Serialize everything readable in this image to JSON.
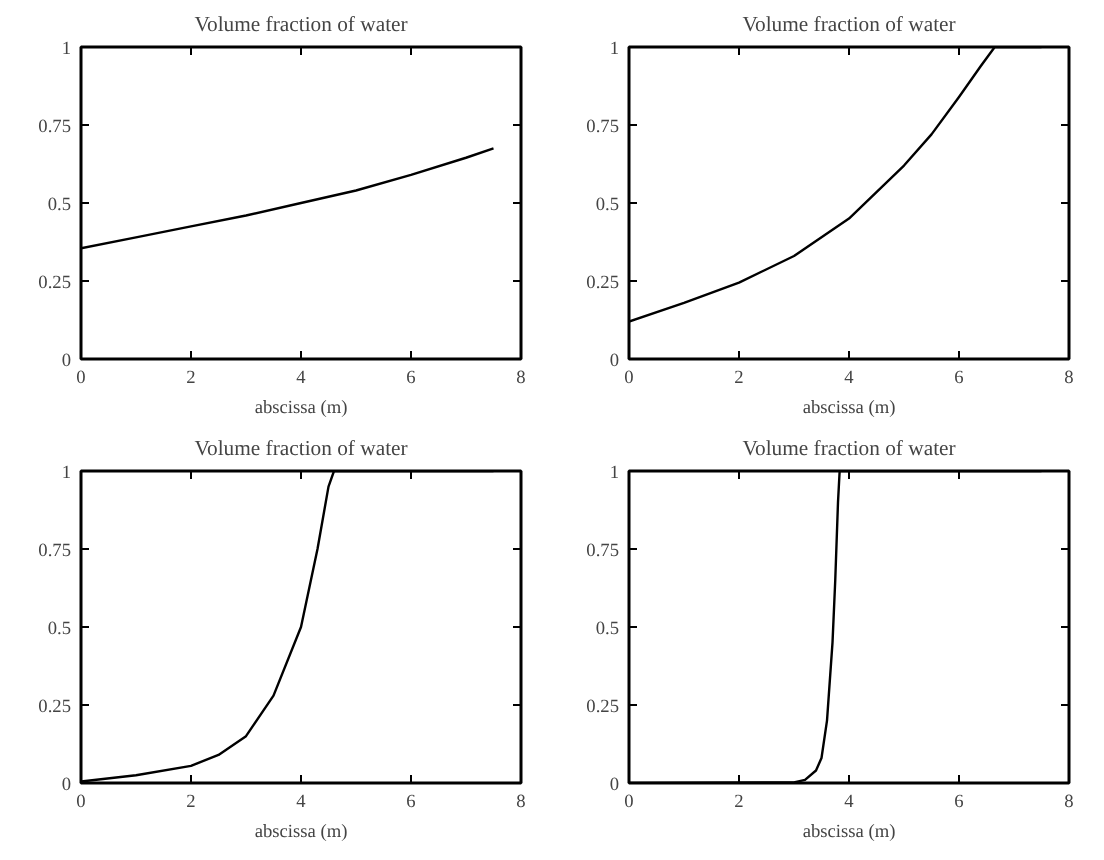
{
  "chart_data": [
    {
      "type": "line",
      "title": "Volume fraction of water",
      "xlabel": "abscissa (m)",
      "xlim": [
        0,
        8
      ],
      "ylim": [
        0,
        1
      ],
      "xticks": [
        0,
        2,
        4,
        6,
        8
      ],
      "yticks": [
        0,
        0.25,
        0.5,
        0.75,
        1
      ],
      "grid": false,
      "series": [
        {
          "color": "#000000",
          "x": [
            0,
            1,
            2,
            3,
            4,
            5,
            6,
            7,
            7.5
          ],
          "values": [
            0.355,
            0.39,
            0.425,
            0.46,
            0.5,
            0.54,
            0.59,
            0.645,
            0.675
          ]
        }
      ]
    },
    {
      "type": "line",
      "title": "Volume fraction of water",
      "xlabel": "abscissa (m)",
      "xlim": [
        0,
        8
      ],
      "ylim": [
        0,
        1
      ],
      "xticks": [
        0,
        2,
        4,
        6,
        8
      ],
      "yticks": [
        0,
        0.25,
        0.5,
        0.75,
        1
      ],
      "grid": false,
      "series": [
        {
          "color": "#000000",
          "x": [
            0,
            1,
            2,
            3,
            4,
            5,
            5.5,
            6,
            6.4,
            6.65,
            7.5
          ],
          "values": [
            0.12,
            0.18,
            0.245,
            0.33,
            0.45,
            0.62,
            0.72,
            0.84,
            0.94,
            1,
            1
          ]
        }
      ]
    },
    {
      "type": "line",
      "title": "Volume fraction of water",
      "xlabel": "abscissa (m)",
      "xlim": [
        0,
        8
      ],
      "ylim": [
        0,
        1
      ],
      "xticks": [
        0,
        2,
        4,
        6,
        8
      ],
      "yticks": [
        0,
        0.25,
        0.5,
        0.75,
        1
      ],
      "grid": false,
      "series": [
        {
          "color": "#000000",
          "x": [
            0,
            1,
            2,
            2.5,
            3,
            3.5,
            4,
            4.3,
            4.5,
            4.6,
            7.5
          ],
          "values": [
            0.005,
            0.025,
            0.055,
            0.09,
            0.15,
            0.28,
            0.5,
            0.75,
            0.95,
            1,
            1
          ]
        }
      ]
    },
    {
      "type": "line",
      "title": "Volume fraction of water",
      "xlabel": "abscissa (m)",
      "xlim": [
        0,
        8
      ],
      "ylim": [
        0,
        1
      ],
      "xticks": [
        0,
        2,
        4,
        6,
        8
      ],
      "yticks": [
        0,
        0.25,
        0.5,
        0.75,
        1
      ],
      "grid": false,
      "series": [
        {
          "color": "#000000",
          "x": [
            0,
            3,
            3.2,
            3.4,
            3.5,
            3.6,
            3.7,
            3.75,
            3.8,
            3.83,
            7.5
          ],
          "values": [
            0,
            0.002,
            0.01,
            0.04,
            0.08,
            0.2,
            0.45,
            0.65,
            0.9,
            1,
            1
          ]
        }
      ]
    }
  ]
}
